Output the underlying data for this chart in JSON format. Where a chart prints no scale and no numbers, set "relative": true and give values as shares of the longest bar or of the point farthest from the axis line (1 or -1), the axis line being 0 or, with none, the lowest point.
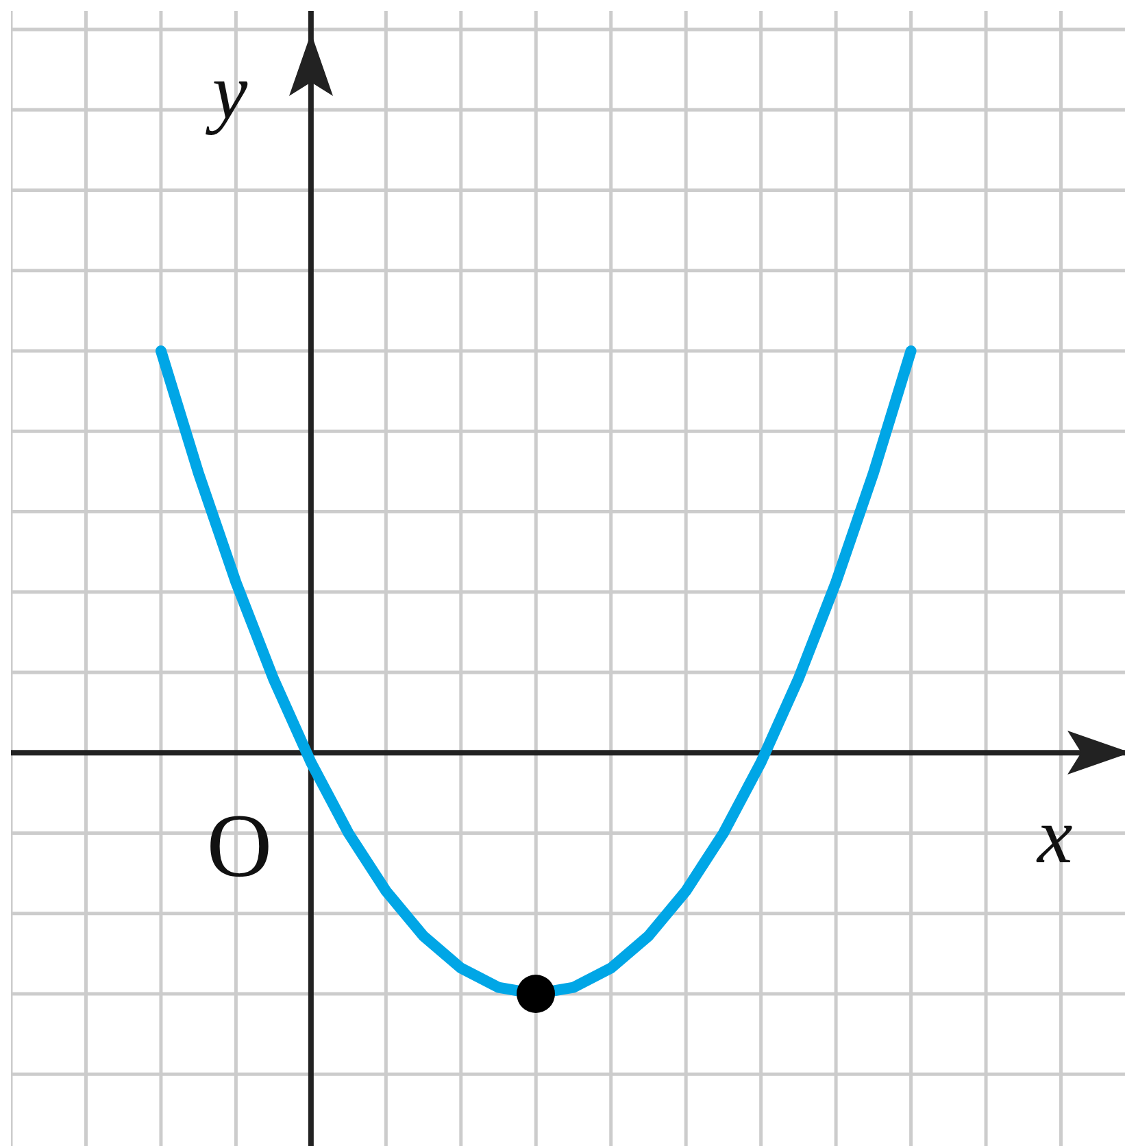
{
  "chart_data": {
    "type": "line",
    "relative": true,
    "xlabel": "x",
    "ylabel": "y",
    "grid": true,
    "annotations": [
      "O"
    ],
    "categories": [
      null,
      null,
      null,
      null,
      null,
      null,
      null,
      null,
      null,
      null,
      null,
      null,
      null,
      null,
      null,
      null,
      null,
      null,
      null,
      null,
      null
    ],
    "series": [
      {
        "color": "#00a6e6",
        "values": [
          1,
          0.696,
          0.424,
          0.184,
          -0.024,
          -0.2,
          -0.344,
          -0.456,
          -0.536,
          -0.584,
          -0.6,
          -0.584,
          -0.536,
          -0.456,
          -0.344,
          -0.2,
          -0.024,
          0.184,
          0.424,
          0.696,
          1
        ]
      }
    ]
  }
}
